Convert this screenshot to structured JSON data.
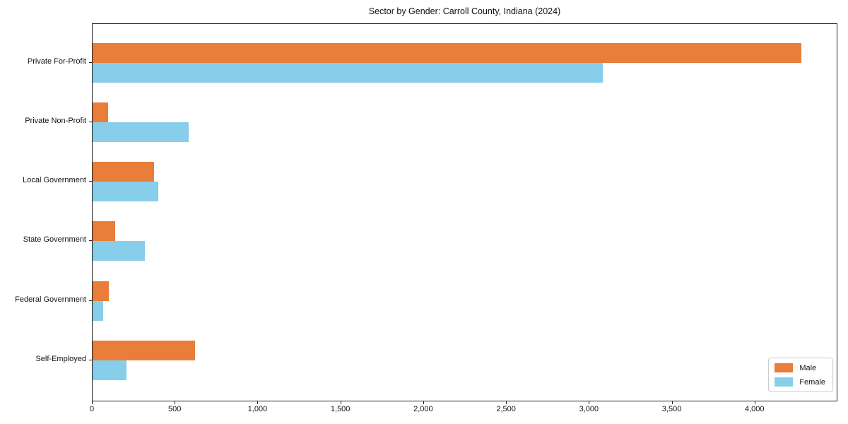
{
  "chart_data": {
    "type": "bar",
    "orientation": "horizontal",
    "title": "Sector by Gender: Carroll County, Indiana (2024)",
    "categories": [
      "Private For-Profit",
      "Private Non-Profit",
      "Local Government",
      "State Government",
      "Federal Government",
      "Self-Employed"
    ],
    "series": [
      {
        "name": "Male",
        "color": "#e87e3a",
        "values": [
          4288,
          92,
          373,
          138,
          100,
          620
        ]
      },
      {
        "name": "Female",
        "color": "#87ceeb",
        "values": [
          3087,
          582,
          398,
          317,
          62,
          207
        ]
      }
    ],
    "xlim": [
      0,
      4500
    ],
    "xticks": [
      0,
      500,
      1000,
      1500,
      2000,
      2500,
      3000,
      3500,
      4000
    ],
    "xtick_labels": [
      "0",
      "500",
      "1,000",
      "1,500",
      "2,000",
      "2,500",
      "3,000",
      "3,500",
      "4,000"
    ],
    "xlabel": "",
    "ylabel": "",
    "grid": false,
    "legend_position": "lower right"
  },
  "colors": {
    "spine": "#222222",
    "text": "#111111",
    "legend_border": "#cccccc",
    "background": "#ffffff"
  }
}
